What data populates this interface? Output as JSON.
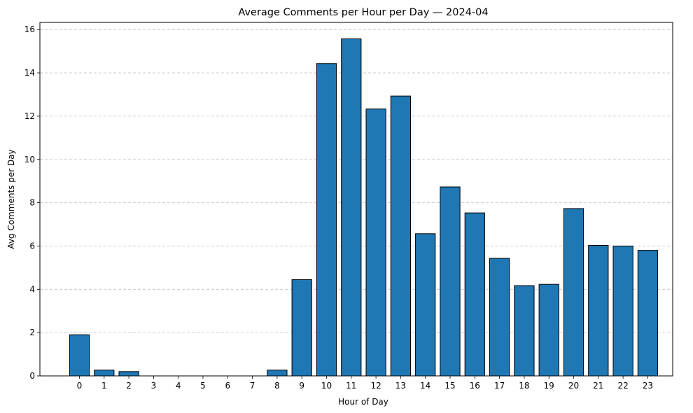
{
  "chart_data": {
    "type": "bar",
    "title": "Average Comments per Hour per Day — 2024-04",
    "xlabel": "Hour of Day",
    "ylabel": "Avg Comments per Day",
    "categories": [
      "0",
      "1",
      "2",
      "3",
      "4",
      "5",
      "6",
      "7",
      "8",
      "9",
      "10",
      "11",
      "12",
      "13",
      "14",
      "15",
      "16",
      "17",
      "18",
      "19",
      "20",
      "21",
      "22",
      "23"
    ],
    "values": [
      1.9,
      0.27,
      0.2,
      0,
      0,
      0,
      0,
      0,
      0.27,
      4.45,
      14.43,
      15.57,
      12.33,
      12.93,
      6.57,
      8.73,
      7.53,
      5.43,
      4.17,
      4.23,
      7.73,
      6.03,
      6.0,
      5.8
    ],
    "ylim": [
      0,
      16.33
    ],
    "yticks": [
      0,
      2,
      4,
      6,
      8,
      10,
      12,
      14,
      16
    ],
    "grid": {
      "y": true,
      "x": false,
      "style": "dashed"
    },
    "colors": {
      "bar_fill": "#1f77b4",
      "bar_edge": "#000000",
      "grid": "#c0c0c0"
    }
  }
}
